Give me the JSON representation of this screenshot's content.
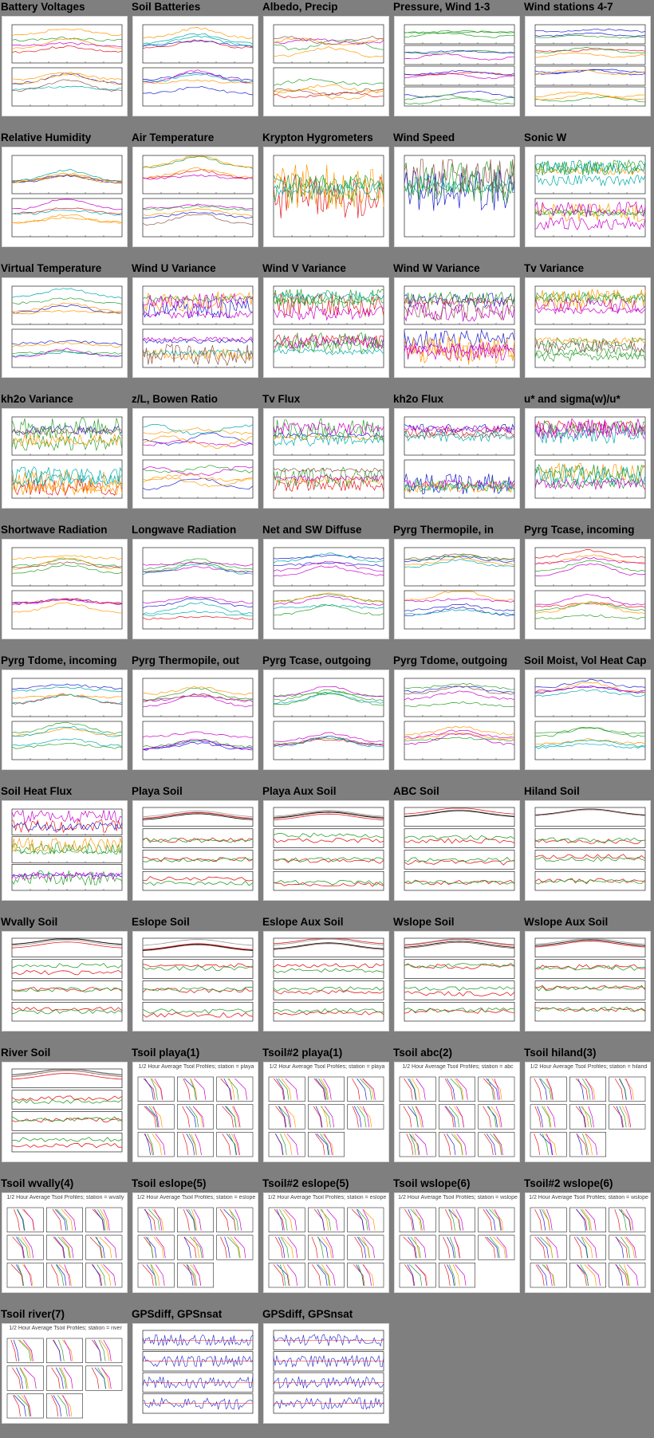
{
  "plots": [
    {
      "title": "Battery Voltages",
      "kind": "timeseries",
      "panels": 2
    },
    {
      "title": "Soil Batteries",
      "kind": "timeseries",
      "panels": 2
    },
    {
      "title": "Albedo, Precip",
      "kind": "timeseries",
      "panels": 2
    },
    {
      "title": "Pressure, Wind 1-3",
      "kind": "timeseries",
      "panels": 4
    },
    {
      "title": "Wind stations 4-7",
      "kind": "timeseries",
      "panels": 4
    },
    {
      "title": "Relative Humidity",
      "kind": "timeseries",
      "panels": 2
    },
    {
      "title": "Air Temperature",
      "kind": "timeseries",
      "panels": 2
    },
    {
      "title": "Krypton Hygrometers",
      "kind": "timeseries",
      "panels": 1
    },
    {
      "title": "Wind Speed",
      "kind": "timeseries",
      "panels": 1
    },
    {
      "title": "Sonic W",
      "kind": "timeseries",
      "panels": 2
    },
    {
      "title": "Virtual Temperature",
      "kind": "timeseries",
      "panels": 2
    },
    {
      "title": "Wind U Variance",
      "kind": "timeseries",
      "panels": 2
    },
    {
      "title": "Wind V Variance",
      "kind": "timeseries",
      "panels": 2
    },
    {
      "title": "Wind W Variance",
      "kind": "timeseries",
      "panels": 2
    },
    {
      "title": "Tv Variance",
      "kind": "timeseries",
      "panels": 2
    },
    {
      "title": "kh2o Variance",
      "kind": "timeseries",
      "panels": 2
    },
    {
      "title": "z/L, Bowen Ratio",
      "kind": "timeseries",
      "panels": 2
    },
    {
      "title": "Tv Flux",
      "kind": "timeseries",
      "panels": 2
    },
    {
      "title": "kh2o Flux",
      "kind": "timeseries",
      "panels": 2
    },
    {
      "title": "u* and sigma(w)/u*",
      "kind": "timeseries",
      "panels": 2
    },
    {
      "title": "Shortwave Radiation",
      "kind": "timeseries",
      "panels": 2
    },
    {
      "title": "Longwave Radiation",
      "kind": "timeseries",
      "panels": 2
    },
    {
      "title": "Net and SW Diffuse",
      "kind": "timeseries",
      "panels": 2
    },
    {
      "title": "Pyrg Thermopile, in",
      "kind": "timeseries",
      "panels": 2
    },
    {
      "title": "Pyrg Tcase, incoming",
      "kind": "timeseries",
      "panels": 2
    },
    {
      "title": "Pyrg Tdome, incoming",
      "kind": "timeseries",
      "panels": 2
    },
    {
      "title": "Pyrg Thermopile, out",
      "kind": "timeseries",
      "panels": 2
    },
    {
      "title": "Pyrg Tcase, outgoing",
      "kind": "timeseries",
      "panels": 2
    },
    {
      "title": "Pyrg Tdome, outgoing",
      "kind": "timeseries",
      "panels": 2
    },
    {
      "title": "Soil Moist, Vol Heat Cap",
      "kind": "timeseries",
      "panels": 2
    },
    {
      "title": "Soil Heat Flux",
      "kind": "timeseries",
      "panels": 3
    },
    {
      "title": "Playa Soil",
      "kind": "soil",
      "panels": 4
    },
    {
      "title": "Playa Aux Soil",
      "kind": "soil",
      "panels": 4
    },
    {
      "title": "ABC Soil",
      "kind": "soil",
      "panels": 4
    },
    {
      "title": "Hiland Soil",
      "kind": "soil",
      "panels": 4
    },
    {
      "title": "Wvally Soil",
      "kind": "soil",
      "panels": 4
    },
    {
      "title": "Eslope Soil",
      "kind": "soil",
      "panels": 4
    },
    {
      "title": "Eslope Aux Soil",
      "kind": "soil",
      "panels": 4
    },
    {
      "title": "Wslope Soil",
      "kind": "soil",
      "panels": 4
    },
    {
      "title": "Wslope Aux Soil",
      "kind": "soil",
      "panels": 4
    },
    {
      "title": "River Soil",
      "kind": "soil",
      "panels": 4
    },
    {
      "title": "Tsoil playa(1)",
      "kind": "profile",
      "caption": "1/2 Hour Average Tsoil Profiles; station = playa"
    },
    {
      "title": "Tsoil#2 playa(1)",
      "kind": "profile",
      "caption": "1/2 Hour Average Tsoil Profiles; station = playa"
    },
    {
      "title": "Tsoil abc(2)",
      "kind": "profile",
      "caption": "1/2 Hour Average Tsoil Profiles; station = abc"
    },
    {
      "title": "Tsoil hiland(3)",
      "kind": "profile",
      "caption": "1/2 Hour Average Tsoil Profiles; station = hiland"
    },
    {
      "title": "Tsoil wvally(4)",
      "kind": "profile",
      "caption": "1/2 Hour Average Tsoil Profiles; station = wvally"
    },
    {
      "title": "Tsoil eslope(5)",
      "kind": "profile",
      "caption": "1/2 Hour Average Tsoil Profiles; station = eslope"
    },
    {
      "title": "Tsoil#2 eslope(5)",
      "kind": "profile",
      "caption": "1/2 Hour Average Tsoil Profiles; station = eslope"
    },
    {
      "title": "Tsoil wslope(6)",
      "kind": "profile",
      "caption": "1/2 Hour Average Tsoil Profiles; station = wslope"
    },
    {
      "title": "Tsoil#2 wslope(6)",
      "kind": "profile",
      "caption": "1/2 Hour Average Tsoil Profiles; station = wslope"
    },
    {
      "title": "Tsoil river(7)",
      "kind": "profile",
      "caption": "1/2 Hour Average Tsoil Profiles; station = river"
    },
    {
      "title": "GPSdiff, GPSnsat",
      "kind": "gps",
      "panels": 4
    },
    {
      "title": "GPSdiff, GPSnsat",
      "kind": "gps",
      "panels": 4
    }
  ],
  "colors": {
    "background": "#7f7f7f",
    "series": [
      "#e41a1c",
      "#1f1fd0",
      "#2ca02c",
      "#ff9900",
      "#cc00cc",
      "#00aaaa",
      "#8c564b",
      "#7fbf00",
      "#000000"
    ]
  }
}
